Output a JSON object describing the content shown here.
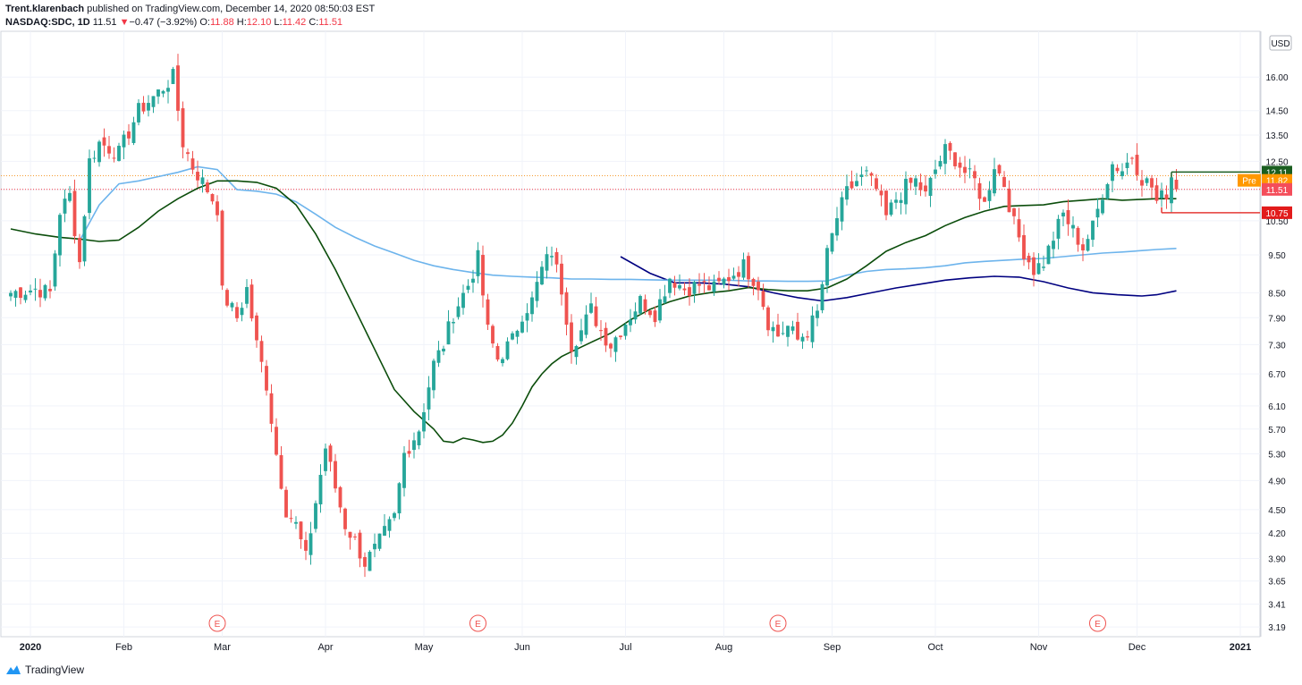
{
  "header": {
    "author": "Trent.klarenbach",
    "published_text": "published on TradingView.com, December 14, 2020 08:50:03 EST",
    "symbol": "NASDAQ:SDC, 1D",
    "last": "11.51",
    "change_arrow": "▼",
    "change": "−0.47 (−3.92%)",
    "open_label": "O:",
    "open": "11.88",
    "high_label": "H:",
    "high": "12.10",
    "low_label": "L:",
    "low": "11.42",
    "close_label": "C:",
    "close": "11.51"
  },
  "footer": {
    "brand": "TradingView",
    "logo_icon": "tradingview-logo-icon"
  },
  "chart_data": {
    "type": "candlestick",
    "currency": "USD",
    "scale": "log",
    "ylim": [
      3.1,
      18.3
    ],
    "y_ticks": [
      "16.00",
      "14.50",
      "13.50",
      "12.50",
      "11.50",
      "10.50",
      "9.50",
      "8.50",
      "7.90",
      "7.30",
      "6.70",
      "6.10",
      "5.70",
      "5.30",
      "4.90",
      "4.50",
      "4.20",
      "3.90",
      "3.65",
      "3.41",
      "3.19"
    ],
    "x_ticks": [
      {
        "label": "2020",
        "t": 4,
        "bold": true
      },
      {
        "label": "Feb",
        "t": 23
      },
      {
        "label": "Mar",
        "t": 43
      },
      {
        "label": "Apr",
        "t": 64
      },
      {
        "label": "May",
        "t": 84
      },
      {
        "label": "Jun",
        "t": 104
      },
      {
        "label": "Jul",
        "t": 125
      },
      {
        "label": "Aug",
        "t": 145
      },
      {
        "label": "Sep",
        "t": 167
      },
      {
        "label": "Oct",
        "t": 188
      },
      {
        "label": "Nov",
        "t": 209
      },
      {
        "label": "Dec",
        "t": 229
      },
      {
        "label": "2021",
        "t": 250,
        "bold": true
      }
    ],
    "x_range": [
      -2,
      254
    ],
    "close_anchors": [
      [
        0,
        8.5
      ],
      [
        5,
        8.6
      ],
      [
        8,
        8.5
      ],
      [
        10,
        10.8
      ],
      [
        12,
        11.3
      ],
      [
        14,
        9.3
      ],
      [
        16,
        12.5
      ],
      [
        18,
        13.2
      ],
      [
        22,
        12.8
      ],
      [
        26,
        14.5
      ],
      [
        30,
        15.3
      ],
      [
        33,
        16.0
      ],
      [
        35,
        13.2
      ],
      [
        37,
        12.3
      ],
      [
        40,
        11.5
      ],
      [
        42,
        10.9
      ],
      [
        43,
        8.5
      ],
      [
        46,
        7.9
      ],
      [
        48,
        8.6
      ],
      [
        50,
        7.3
      ],
      [
        52,
        6.5
      ],
      [
        54,
        5.3
      ],
      [
        56,
        4.5
      ],
      [
        58,
        4.3
      ],
      [
        60,
        3.9
      ],
      [
        62,
        4.6
      ],
      [
        64,
        5.4
      ],
      [
        66,
        4.8
      ],
      [
        68,
        4.3
      ],
      [
        70,
        4.1
      ],
      [
        72,
        3.85
      ],
      [
        74,
        4.0
      ],
      [
        76,
        4.2
      ],
      [
        78,
        4.4
      ],
      [
        80,
        5.3
      ],
      [
        83,
        5.7
      ],
      [
        86,
        6.9
      ],
      [
        88,
        7.3
      ],
      [
        90,
        8.0
      ],
      [
        93,
        8.7
      ],
      [
        95,
        9.4
      ],
      [
        97,
        7.6
      ],
      [
        99,
        7.0
      ],
      [
        102,
        7.4
      ],
      [
        104,
        8.0
      ],
      [
        106,
        8.3
      ],
      [
        108,
        9.1
      ],
      [
        110,
        9.6
      ],
      [
        112,
        8.6
      ],
      [
        114,
        7.3
      ],
      [
        116,
        7.6
      ],
      [
        118,
        8.1
      ],
      [
        120,
        7.6
      ],
      [
        122,
        7.3
      ],
      [
        125,
        7.8
      ],
      [
        128,
        8.3
      ],
      [
        131,
        8.0
      ],
      [
        134,
        8.9
      ],
      [
        137,
        8.6
      ],
      [
        140,
        8.7
      ],
      [
        143,
        8.6
      ],
      [
        146,
        8.9
      ],
      [
        149,
        9.2
      ],
      [
        152,
        8.7
      ],
      [
        154,
        7.8
      ],
      [
        156,
        7.5
      ],
      [
        158,
        7.7
      ],
      [
        160,
        7.4
      ],
      [
        162,
        7.6
      ],
      [
        164,
        8.0
      ],
      [
        166,
        9.5
      ],
      [
        168,
        10.6
      ],
      [
        170,
        11.4
      ],
      [
        172,
        11.8
      ],
      [
        174,
        12.0
      ],
      [
        176,
        11.5
      ],
      [
        178,
        10.6
      ],
      [
        180,
        11.2
      ],
      [
        182,
        11.6
      ],
      [
        184,
        11.8
      ],
      [
        186,
        11.3
      ],
      [
        188,
        12.2
      ],
      [
        190,
        12.9
      ],
      [
        192,
        12.6
      ],
      [
        194,
        12.1
      ],
      [
        196,
        11.8
      ],
      [
        198,
        11.0
      ],
      [
        200,
        12.4
      ],
      [
        202,
        11.7
      ],
      [
        204,
        10.4
      ],
      [
        206,
        9.6
      ],
      [
        208,
        9.1
      ],
      [
        210,
        9.3
      ],
      [
        212,
        10.0
      ],
      [
        214,
        10.7
      ],
      [
        216,
        10.2
      ],
      [
        218,
        9.7
      ],
      [
        220,
        10.3
      ],
      [
        222,
        11.4
      ],
      [
        224,
        12.4
      ],
      [
        226,
        12.2
      ],
      [
        228,
        12.7
      ],
      [
        230,
        11.9
      ],
      [
        232,
        11.6
      ],
      [
        233,
        11.1
      ],
      [
        235,
        11.4
      ],
      [
        236,
        11.98
      ],
      [
        237,
        11.51
      ]
    ],
    "series": [
      {
        "name": "",
        "color": "#000080",
        "role": "sma",
        "points": [
          [
            124,
            9.45
          ],
          [
            130,
            9.0
          ],
          [
            135,
            8.75
          ],
          [
            140,
            8.75
          ],
          [
            145,
            8.72
          ],
          [
            150,
            8.65
          ],
          [
            155,
            8.5
          ],
          [
            160,
            8.38
          ],
          [
            165,
            8.3
          ],
          [
            170,
            8.38
          ],
          [
            175,
            8.5
          ],
          [
            180,
            8.62
          ],
          [
            185,
            8.72
          ],
          [
            190,
            8.82
          ],
          [
            195,
            8.88
          ],
          [
            200,
            8.92
          ],
          [
            205,
            8.9
          ],
          [
            210,
            8.78
          ],
          [
            215,
            8.62
          ],
          [
            220,
            8.5
          ],
          [
            225,
            8.45
          ],
          [
            230,
            8.42
          ],
          [
            233,
            8.45
          ],
          [
            237,
            8.55
          ]
        ]
      },
      {
        "name": "",
        "color": "#6db4ec",
        "role": "sma",
        "points": [
          [
            14,
            9.9
          ],
          [
            18,
            11.0
          ],
          [
            22,
            11.7
          ],
          [
            26,
            11.8
          ],
          [
            30,
            11.95
          ],
          [
            34,
            12.1
          ],
          [
            38,
            12.3
          ],
          [
            42,
            12.2
          ],
          [
            46,
            11.5
          ],
          [
            50,
            11.45
          ],
          [
            54,
            11.35
          ],
          [
            58,
            11.1
          ],
          [
            62,
            10.7
          ],
          [
            66,
            10.3
          ],
          [
            70,
            10.0
          ],
          [
            74,
            9.75
          ],
          [
            78,
            9.55
          ],
          [
            82,
            9.35
          ],
          [
            86,
            9.2
          ],
          [
            90,
            9.1
          ],
          [
            94,
            9.02
          ],
          [
            98,
            8.95
          ],
          [
            102,
            8.92
          ],
          [
            106,
            8.9
          ],
          [
            110,
            8.88
          ],
          [
            114,
            8.85
          ],
          [
            118,
            8.85
          ],
          [
            122,
            8.84
          ],
          [
            126,
            8.84
          ],
          [
            130,
            8.83
          ],
          [
            134,
            8.82
          ],
          [
            138,
            8.82
          ],
          [
            142,
            8.82
          ],
          [
            146,
            8.82
          ],
          [
            150,
            8.8
          ],
          [
            154,
            8.8
          ],
          [
            158,
            8.79
          ],
          [
            162,
            8.79
          ],
          [
            166,
            8.8
          ],
          [
            170,
            8.95
          ],
          [
            174,
            9.05
          ],
          [
            178,
            9.1
          ],
          [
            182,
            9.12
          ],
          [
            186,
            9.15
          ],
          [
            190,
            9.2
          ],
          [
            194,
            9.28
          ],
          [
            198,
            9.32
          ],
          [
            202,
            9.35
          ],
          [
            206,
            9.38
          ],
          [
            210,
            9.4
          ],
          [
            214,
            9.45
          ],
          [
            218,
            9.5
          ],
          [
            222,
            9.55
          ],
          [
            226,
            9.58
          ],
          [
            230,
            9.62
          ],
          [
            233,
            9.65
          ],
          [
            237,
            9.68
          ]
        ]
      },
      {
        "name": "",
        "color": "#0b4d0b",
        "role": "sma",
        "points": [
          [
            0,
            10.25
          ],
          [
            5,
            10.1
          ],
          [
            10,
            10.0
          ],
          [
            14,
            9.95
          ],
          [
            18,
            9.88
          ],
          [
            22,
            9.92
          ],
          [
            26,
            10.3
          ],
          [
            30,
            10.8
          ],
          [
            34,
            11.2
          ],
          [
            38,
            11.55
          ],
          [
            42,
            11.8
          ],
          [
            46,
            11.8
          ],
          [
            50,
            11.75
          ],
          [
            54,
            11.55
          ],
          [
            58,
            11.0
          ],
          [
            62,
            10.1
          ],
          [
            66,
            9.1
          ],
          [
            70,
            8.1
          ],
          [
            74,
            7.2
          ],
          [
            78,
            6.4
          ],
          [
            82,
            6.0
          ],
          [
            86,
            5.7
          ],
          [
            88,
            5.5
          ],
          [
            90,
            5.48
          ],
          [
            92,
            5.55
          ],
          [
            94,
            5.52
          ],
          [
            96,
            5.48
          ],
          [
            98,
            5.5
          ],
          [
            100,
            5.6
          ],
          [
            102,
            5.8
          ],
          [
            104,
            6.1
          ],
          [
            106,
            6.45
          ],
          [
            108,
            6.7
          ],
          [
            110,
            6.9
          ],
          [
            112,
            7.05
          ],
          [
            114,
            7.15
          ],
          [
            118,
            7.35
          ],
          [
            122,
            7.55
          ],
          [
            126,
            7.85
          ],
          [
            130,
            8.1
          ],
          [
            134,
            8.28
          ],
          [
            138,
            8.42
          ],
          [
            142,
            8.5
          ],
          [
            146,
            8.55
          ],
          [
            150,
            8.63
          ],
          [
            154,
            8.58
          ],
          [
            158,
            8.55
          ],
          [
            162,
            8.55
          ],
          [
            166,
            8.62
          ],
          [
            170,
            8.85
          ],
          [
            174,
            9.2
          ],
          [
            178,
            9.6
          ],
          [
            182,
            9.85
          ],
          [
            186,
            10.05
          ],
          [
            190,
            10.35
          ],
          [
            194,
            10.6
          ],
          [
            198,
            10.8
          ],
          [
            202,
            10.95
          ],
          [
            206,
            10.98
          ],
          [
            210,
            11.0
          ],
          [
            214,
            11.1
          ],
          [
            218,
            11.15
          ],
          [
            222,
            11.2
          ],
          [
            226,
            11.15
          ],
          [
            230,
            11.18
          ],
          [
            233,
            11.2
          ],
          [
            237,
            11.2
          ]
        ]
      }
    ],
    "earnings_markers": [
      {
        "t": 42,
        "label": "E"
      },
      {
        "t": 95,
        "label": "E"
      },
      {
        "t": 156,
        "label": "E"
      },
      {
        "t": 221,
        "label": "E"
      }
    ],
    "horizontal_lines": [
      {
        "value": 12.11,
        "color": "#1b5e20",
        "label": "12.11",
        "from_t": 236
      },
      {
        "value": 10.75,
        "color": "#e53935",
        "label": "10.75",
        "from_t": 234
      }
    ],
    "dotted_lines": [
      {
        "value": 11.98,
        "color": "#f59b2f"
      },
      {
        "value": 11.51,
        "color": "#f23645"
      }
    ],
    "price_labels": [
      {
        "value": 12.11,
        "label": "12.11",
        "bg": "#1b5e20",
        "fg": "#ffffff"
      },
      {
        "value": 11.82,
        "label": "11.82",
        "bg": "#ff9800",
        "fg": "#ffffff",
        "tag": "Pre"
      },
      {
        "value": 11.51,
        "label": "11.51",
        "bg": "#f44d5a",
        "fg": "#ffffff"
      },
      {
        "value": 10.75,
        "label": "10.75",
        "bg": "#e21b1b",
        "fg": "#ffffff"
      }
    ],
    "colors": {
      "up": "#26a69a",
      "down": "#ef5350",
      "grid": "#f0f3fa",
      "axis_text": "#131722"
    }
  }
}
